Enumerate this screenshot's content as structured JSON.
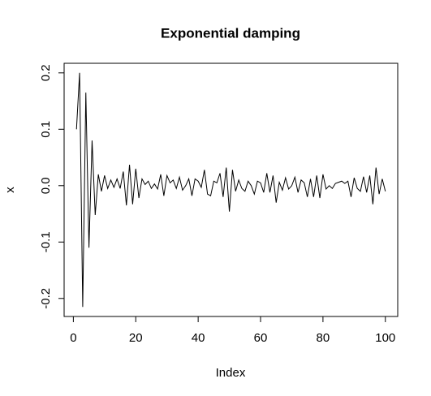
{
  "chart_data": {
    "type": "line",
    "title": "Exponential damping",
    "x_label": "Index",
    "y_label": "x",
    "x": [
      1,
      2,
      3,
      4,
      5,
      6,
      7,
      8,
      9,
      10,
      11,
      12,
      13,
      14,
      15,
      16,
      17,
      18,
      19,
      20,
      21,
      22,
      23,
      24,
      25,
      26,
      27,
      28,
      29,
      30,
      31,
      32,
      33,
      34,
      35,
      36,
      37,
      38,
      39,
      40,
      41,
      42,
      43,
      44,
      45,
      46,
      47,
      48,
      49,
      50,
      51,
      52,
      53,
      54,
      55,
      56,
      57,
      58,
      59,
      60,
      61,
      62,
      63,
      64,
      65,
      66,
      67,
      68,
      69,
      70,
      71,
      72,
      73,
      74,
      75,
      76,
      77,
      78,
      79,
      80,
      81,
      82,
      83,
      84,
      85,
      86,
      87,
      88,
      89,
      90,
      91,
      92,
      93,
      94,
      95,
      96,
      97,
      98,
      99,
      100
    ],
    "values": [
      0.1,
      0.2,
      -0.215,
      0.165,
      -0.11,
      0.08,
      -0.052,
      0.02,
      -0.01,
      0.018,
      -0.005,
      0.01,
      -0.003,
      0.012,
      -0.005,
      0.025,
      -0.035,
      0.037,
      -0.033,
      0.03,
      -0.022,
      0.012,
      0.002,
      0.008,
      -0.005,
      0.003,
      -0.006,
      0.02,
      -0.018,
      0.018,
      0.005,
      0.01,
      -0.005,
      0.015,
      -0.008,
      0.0,
      0.012,
      -0.018,
      0.012,
      0.008,
      -0.003,
      0.028,
      -0.015,
      -0.018,
      0.008,
      0.005,
      0.022,
      -0.02,
      0.032,
      -0.046,
      0.028,
      -0.01,
      0.01,
      -0.005,
      -0.01,
      0.008,
      0.0,
      -0.015,
      0.008,
      0.005,
      -0.012,
      0.022,
      -0.012,
      0.018,
      -0.03,
      0.006,
      -0.008,
      0.014,
      -0.006,
      0.0,
      0.015,
      -0.012,
      0.01,
      0.005,
      -0.02,
      0.012,
      -0.02,
      0.018,
      -0.022,
      0.02,
      -0.006,
      0.0,
      -0.005,
      0.004,
      0.006,
      0.008,
      0.004,
      0.008,
      -0.02,
      0.014,
      -0.005,
      -0.01,
      0.016,
      -0.012,
      0.018,
      -0.033,
      0.032,
      -0.015,
      0.012,
      -0.01
    ],
    "color": "#000000",
    "xlim": [
      -2.96,
      103.96
    ],
    "xticks": [
      0,
      20,
      40,
      60,
      80,
      100
    ],
    "ylim": [
      -0.232,
      0.217
    ],
    "yticks": [
      -0.2,
      -0.1,
      {
        "value": 0,
        "label": "0.0"
      },
      0.1,
      0.2
    ]
  }
}
